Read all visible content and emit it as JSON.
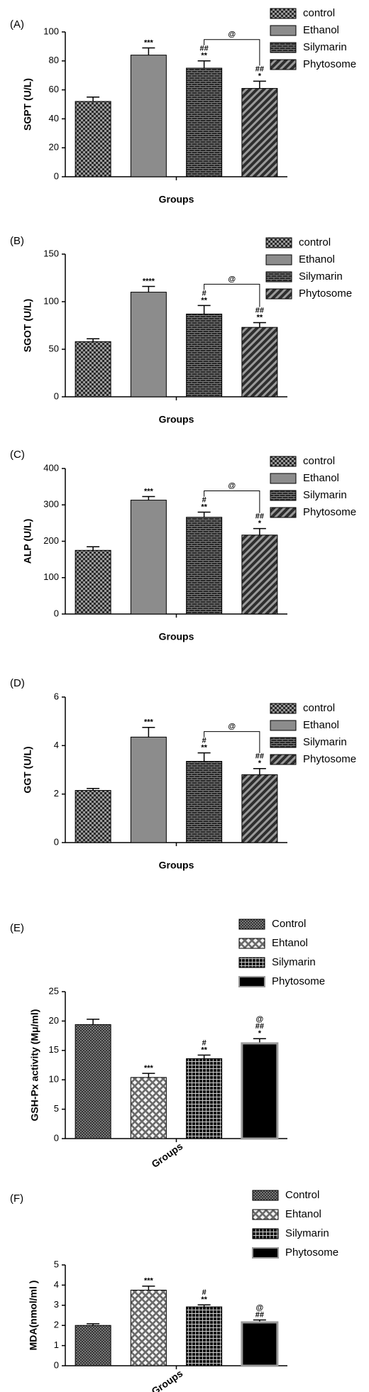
{
  "chart_data": [
    {
      "type": "bar",
      "panel": "(A)",
      "ylabel": "SGPT (U/L)",
      "xlabel": "Groups",
      "ylim": [
        0,
        100
      ],
      "yticks": [
        0,
        20,
        40,
        60,
        80,
        100
      ],
      "bracket_label": "@",
      "series": [
        {
          "name": "control",
          "pattern": "checker",
          "values": [
            52
          ],
          "errors": [
            3
          ]
        },
        {
          "name": "Ethanol",
          "pattern": "solid",
          "color": "#8c8c8c",
          "values": [
            84
          ],
          "errors": [
            5
          ],
          "annotations": [
            "***"
          ]
        },
        {
          "name": "Silymarin",
          "pattern": "brick",
          "values": [
            75
          ],
          "errors": [
            5
          ],
          "annotations": [
            "##",
            "**"
          ]
        },
        {
          "name": "Phytosome",
          "pattern": "stripe",
          "values": [
            61
          ],
          "errors": [
            5
          ],
          "annotations": [
            "##",
            "*"
          ]
        }
      ]
    },
    {
      "type": "bar",
      "panel": "(B)",
      "ylabel": "SGOT (U/L)",
      "xlabel": "Groups",
      "ylim": [
        0,
        150
      ],
      "yticks": [
        0,
        50,
        100,
        150
      ],
      "bracket_label": "@",
      "series": [
        {
          "name": "control",
          "pattern": "checker",
          "values": [
            58
          ],
          "errors": [
            3
          ]
        },
        {
          "name": "Ethanol",
          "pattern": "solid",
          "color": "#8c8c8c",
          "values": [
            110
          ],
          "errors": [
            6
          ],
          "annotations": [
            "****"
          ]
        },
        {
          "name": "Silymarin",
          "pattern": "brick",
          "values": [
            87
          ],
          "errors": [
            9
          ],
          "annotations": [
            "#",
            "**"
          ]
        },
        {
          "name": "Phytosome",
          "pattern": "stripe",
          "values": [
            73
          ],
          "errors": [
            5
          ],
          "annotations": [
            "##",
            "**"
          ]
        }
      ]
    },
    {
      "type": "bar",
      "panel": "(C)",
      "ylabel": "ALP (U/L)",
      "xlabel": "Groups",
      "ylim": [
        0,
        400
      ],
      "yticks": [
        0,
        100,
        200,
        300,
        400
      ],
      "bracket_label": "@",
      "series": [
        {
          "name": "control",
          "pattern": "checker",
          "values": [
            175
          ],
          "errors": [
            10
          ]
        },
        {
          "name": "Ethanol",
          "pattern": "solid",
          "color": "#8c8c8c",
          "values": [
            313
          ],
          "errors": [
            10
          ],
          "annotations": [
            "***"
          ]
        },
        {
          "name": "Silymarin",
          "pattern": "brick",
          "values": [
            266
          ],
          "errors": [
            14
          ],
          "annotations": [
            "#",
            "**"
          ]
        },
        {
          "name": "Phytosome",
          "pattern": "stripe",
          "values": [
            217
          ],
          "errors": [
            18
          ],
          "annotations": [
            "##",
            "*"
          ]
        }
      ]
    },
    {
      "type": "bar",
      "panel": "(D)",
      "ylabel": "GGT (U/L)",
      "xlabel": "Groups",
      "ylim": [
        0,
        6
      ],
      "yticks": [
        0,
        2,
        4,
        6
      ],
      "bracket_label": "@",
      "series": [
        {
          "name": "control",
          "pattern": "checker",
          "values": [
            2.15
          ],
          "errors": [
            0.08
          ]
        },
        {
          "name": "Ethanol",
          "pattern": "solid",
          "color": "#8c8c8c",
          "values": [
            4.35
          ],
          "errors": [
            0.4
          ],
          "annotations": [
            "***"
          ]
        },
        {
          "name": "Silymarin",
          "pattern": "brick",
          "values": [
            3.35
          ],
          "errors": [
            0.35
          ],
          "annotations": [
            "#",
            "**"
          ]
        },
        {
          "name": "Phytosome",
          "pattern": "stripe",
          "values": [
            2.8
          ],
          "errors": [
            0.25
          ],
          "annotations": [
            "##",
            "*"
          ]
        }
      ]
    },
    {
      "type": "bar",
      "panel": "(E)",
      "ylabel": "GSH-Px activity (Mμ/ml)",
      "xlabel": "Groups",
      "ylim": [
        0,
        25
      ],
      "yticks": [
        0,
        5,
        10,
        15,
        20,
        25
      ],
      "series": [
        {
          "name": "Control",
          "pattern": "crosshatch",
          "values": [
            19.4
          ],
          "errors": [
            0.9
          ]
        },
        {
          "name": "Ehtanol",
          "pattern": "diamond",
          "values": [
            10.4
          ],
          "errors": [
            0.7
          ],
          "annotations": [
            "***"
          ]
        },
        {
          "name": "Silymarin",
          "pattern": "grid",
          "values": [
            13.6
          ],
          "errors": [
            0.6
          ],
          "annotations": [
            "#",
            "**"
          ]
        },
        {
          "name": "Phytosome",
          "pattern": "black",
          "values": [
            16.2
          ],
          "errors": [
            0.8
          ],
          "annotations": [
            "@",
            "##",
            "*"
          ]
        }
      ]
    },
    {
      "type": "bar",
      "panel": "(F)",
      "ylabel": "MDA(nmol/ml )",
      "xlabel": "Groups",
      "ylim": [
        0,
        5
      ],
      "yticks": [
        0,
        1,
        2,
        3,
        4,
        5
      ],
      "series": [
        {
          "name": "Control",
          "pattern": "crosshatch",
          "values": [
            2.0
          ],
          "errors": [
            0.08
          ]
        },
        {
          "name": "Ehtanol",
          "pattern": "diamond",
          "values": [
            3.75
          ],
          "errors": [
            0.2
          ],
          "annotations": [
            "***"
          ]
        },
        {
          "name": "Silymarin",
          "pattern": "grid",
          "values": [
            2.92
          ],
          "errors": [
            0.1
          ],
          "annotations": [
            "#",
            "**"
          ]
        },
        {
          "name": "Phytosome",
          "pattern": "black",
          "values": [
            2.15
          ],
          "errors": [
            0.12
          ],
          "annotations": [
            "@",
            "##"
          ]
        }
      ]
    }
  ]
}
